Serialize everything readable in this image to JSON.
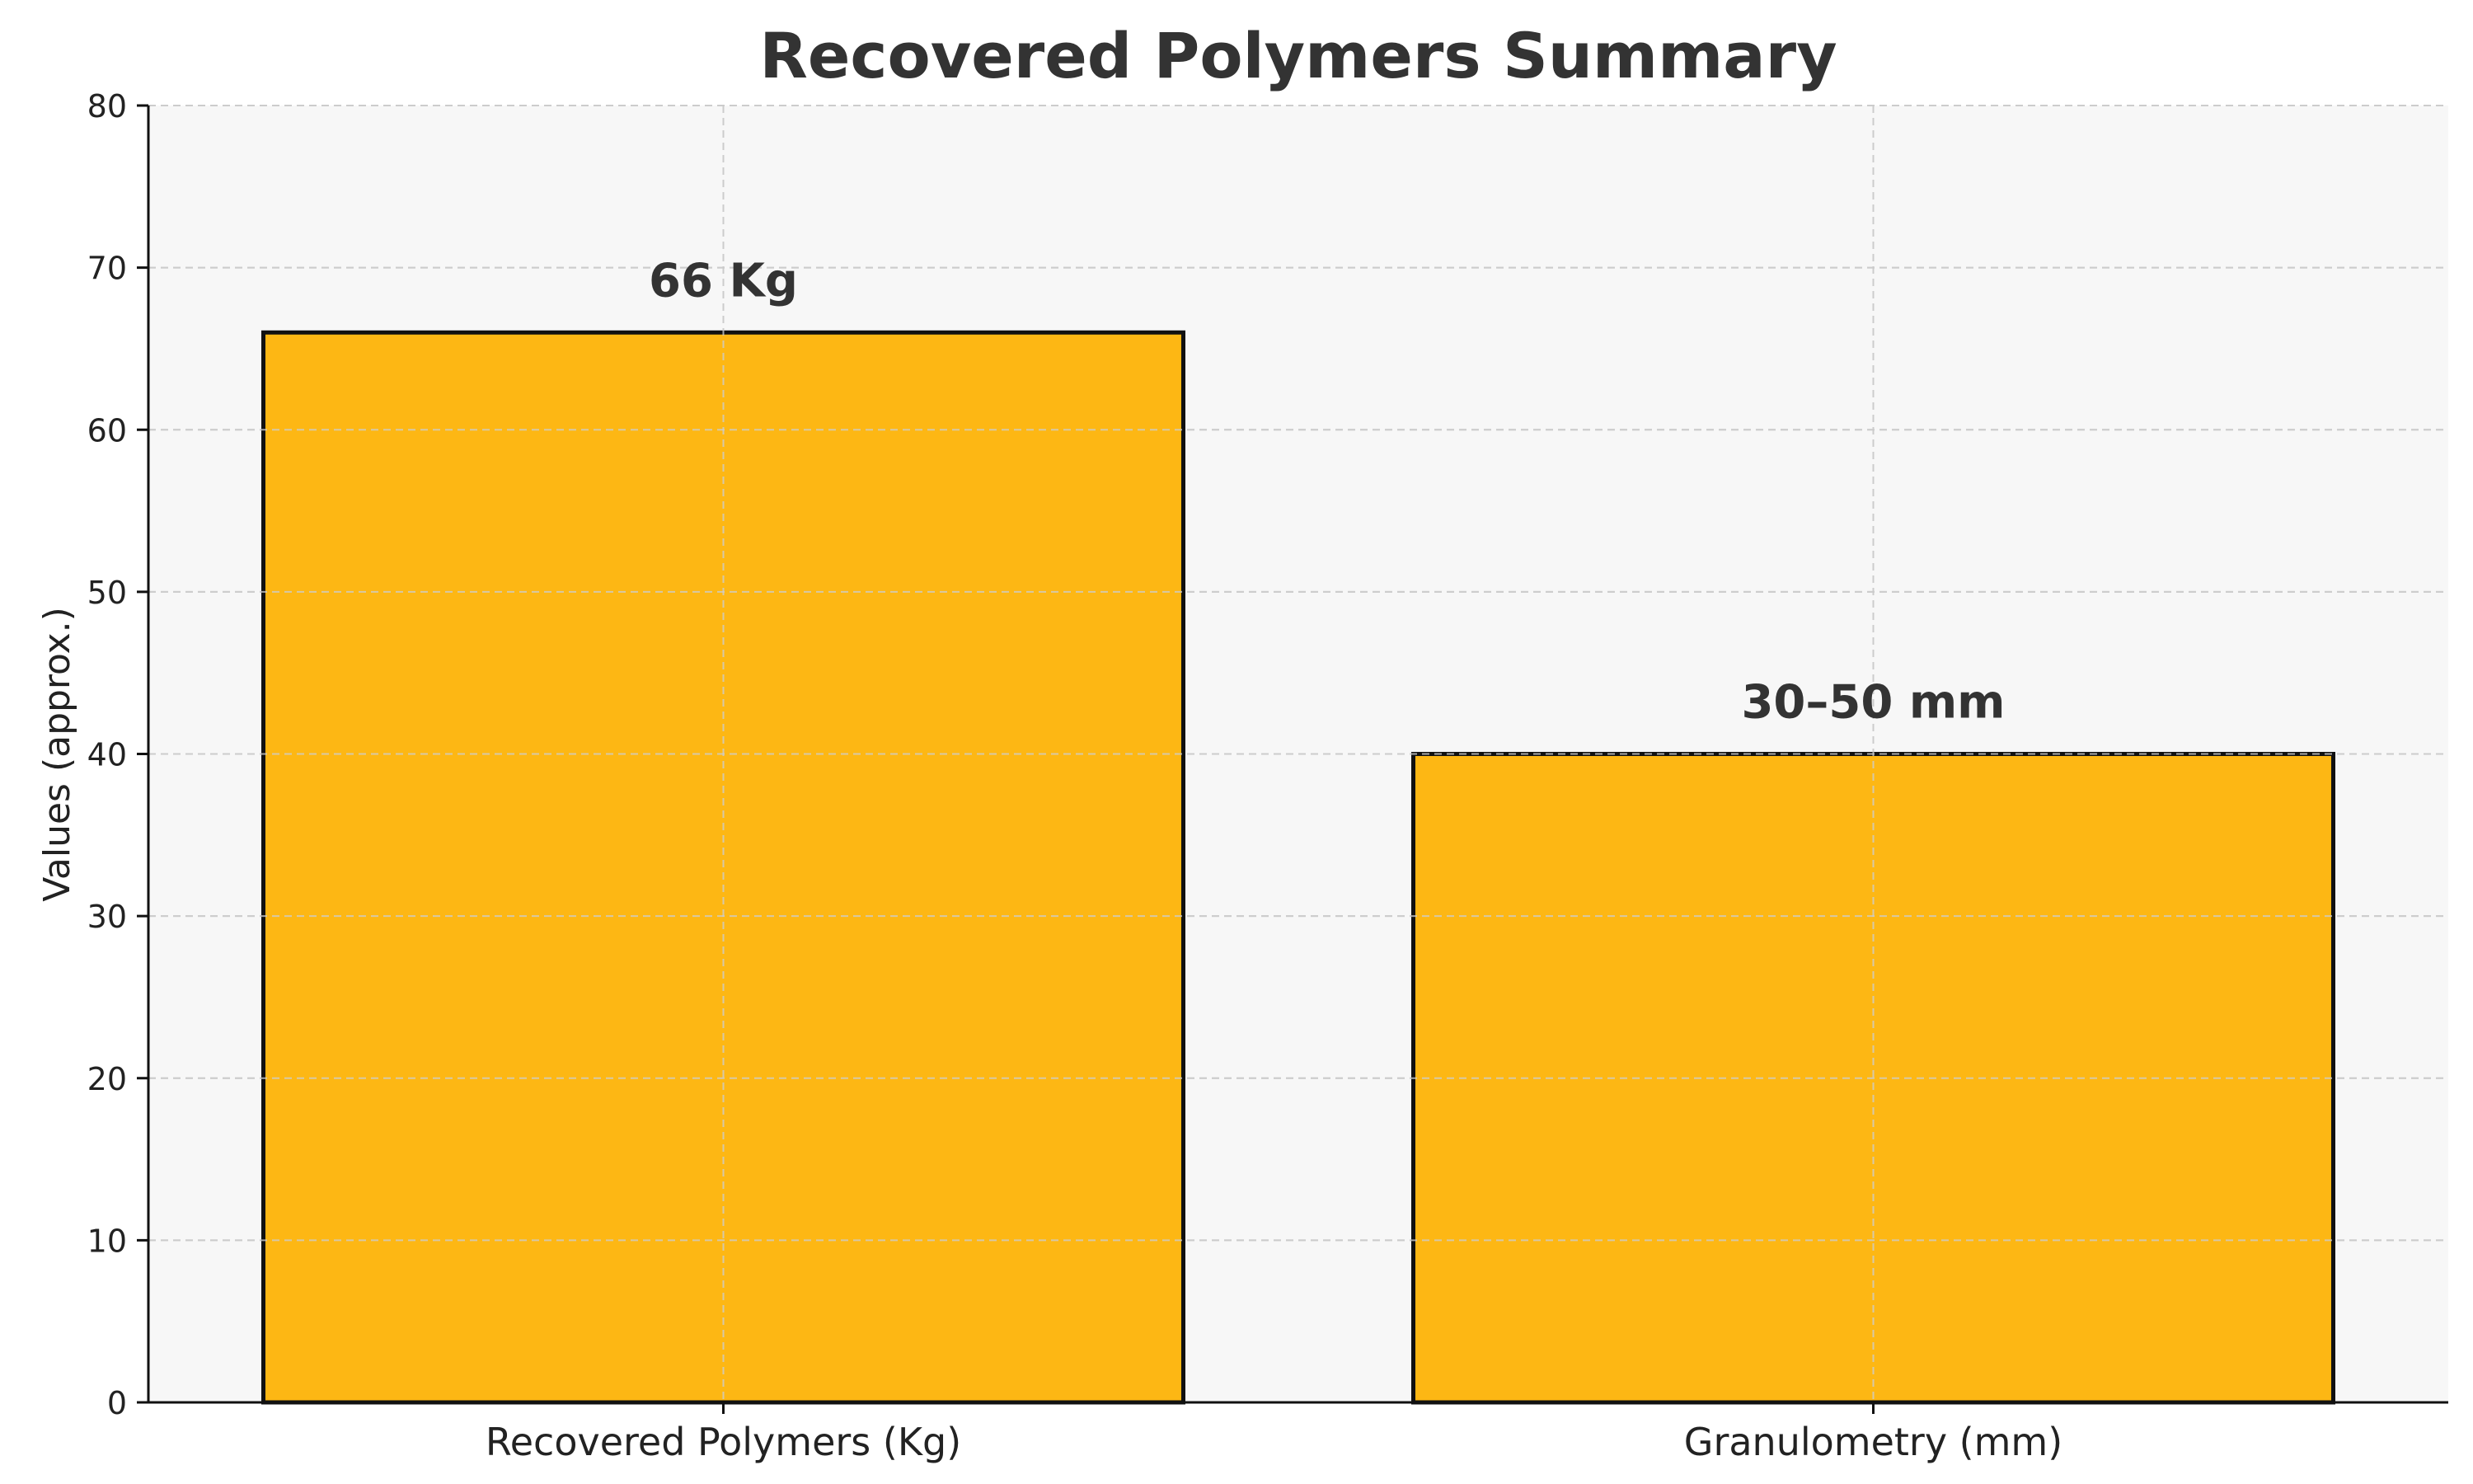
{
  "chart_data": {
    "type": "bar",
    "title": "Recovered Polymers Summary",
    "xlabel": "",
    "ylabel": "Values (approx.)",
    "categories": [
      "Recovered Polymers (Kg)",
      "Granulometry (mm)"
    ],
    "values": [
      66,
      40
    ],
    "data_labels": [
      "66 Kg",
      "30–50 mm"
    ],
    "ylim": [
      0,
      80
    ],
    "yticks": [
      0,
      10,
      20,
      30,
      40,
      50,
      60,
      70,
      80
    ],
    "grid": true,
    "colors": {
      "bar_fill": "#FDB714",
      "bar_edge": "#111111",
      "plot_background": "#F7F7F7",
      "grid": "#CCCCCC",
      "axis": "#111111"
    }
  }
}
